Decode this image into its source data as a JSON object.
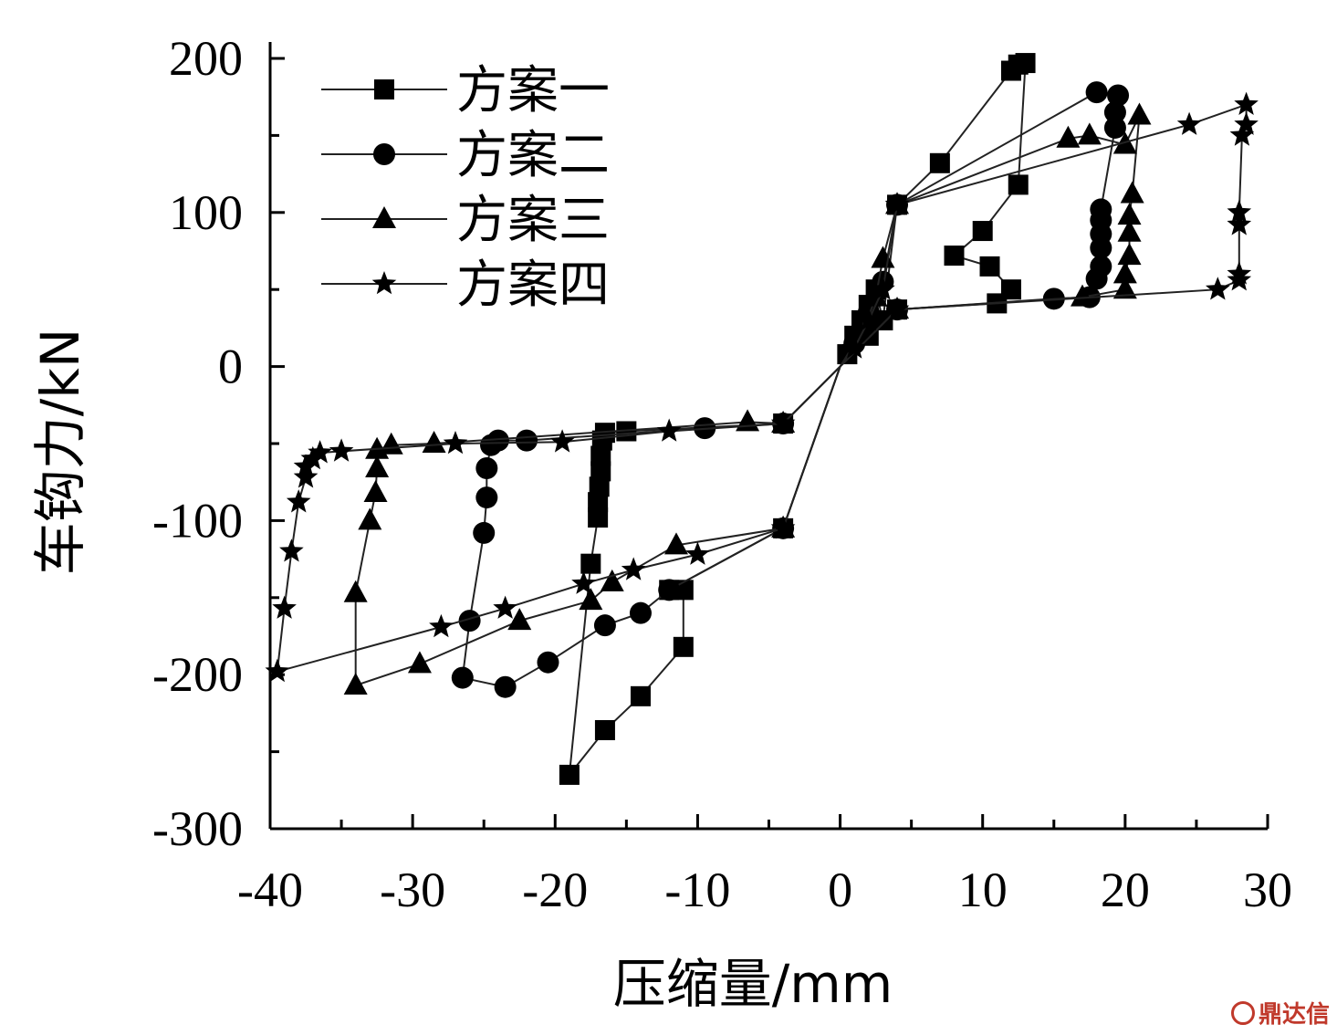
{
  "chart_data": {
    "type": "line",
    "xlabel": "压缩量/mm",
    "ylabel": "车钩力/kN",
    "xlim": [
      -40,
      30
    ],
    "ylim": [
      -300,
      200
    ],
    "xticks": [
      -40,
      -30,
      -20,
      -10,
      0,
      10,
      20,
      30
    ],
    "yticks": [
      -300,
      -200,
      -100,
      0,
      100,
      200
    ],
    "xtick_labels": [
      "-40",
      "-30",
      "-20",
      "-10",
      "0",
      "10",
      "20",
      "30"
    ],
    "ytick_labels": [
      "-300",
      "-200",
      "-100",
      "0",
      "100",
      "200"
    ],
    "legend_position": "top-left",
    "grid": false,
    "series": [
      {
        "name": "方案一",
        "marker": "square",
        "points": [
          [
            0,
            0
          ],
          [
            0.5,
            8
          ],
          [
            1,
            20
          ],
          [
            1.5,
            30
          ],
          [
            2,
            40
          ],
          [
            2.5,
            50
          ],
          [
            3,
            30
          ],
          [
            4,
            105
          ],
          [
            7,
            132
          ],
          [
            12,
            192
          ],
          [
            12.5,
            196
          ],
          [
            13,
            197
          ],
          [
            12.5,
            118
          ],
          [
            10,
            88
          ],
          [
            8,
            72
          ],
          [
            10.5,
            65
          ],
          [
            12,
            50
          ],
          [
            11,
            41
          ],
          [
            4,
            37
          ],
          [
            2,
            20
          ],
          [
            0,
            0
          ],
          [
            -4,
            -37
          ],
          [
            -15,
            -42
          ],
          [
            -16.5,
            -43
          ],
          [
            -16.7,
            -48
          ],
          [
            -16.8,
            -58
          ],
          [
            -16.8,
            -68
          ],
          [
            -16.9,
            -78
          ],
          [
            -17,
            -88
          ],
          [
            -17,
            -98
          ],
          [
            -17.5,
            -128
          ],
          [
            -19,
            -265
          ],
          [
            -16.5,
            -236
          ],
          [
            -14,
            -214
          ],
          [
            -11,
            -182
          ],
          [
            -11,
            -145
          ],
          [
            -12,
            -145
          ],
          [
            -4,
            -105
          ],
          [
            0,
            0
          ]
        ]
      },
      {
        "name": "方案二",
        "marker": "circle",
        "points": [
          [
            0,
            0
          ],
          [
            1,
            15
          ],
          [
            2,
            35
          ],
          [
            3,
            55
          ],
          [
            4,
            105
          ],
          [
            18,
            178
          ],
          [
            19.5,
            176
          ],
          [
            19.3,
            165
          ],
          [
            19.3,
            155
          ],
          [
            18.3,
            102
          ],
          [
            18.3,
            95
          ],
          [
            18.3,
            86
          ],
          [
            18.3,
            77
          ],
          [
            18.3,
            65
          ],
          [
            18,
            57
          ],
          [
            17.5,
            45
          ],
          [
            15,
            44
          ],
          [
            4,
            37
          ],
          [
            0,
            0
          ],
          [
            -4,
            -37
          ],
          [
            -9.5,
            -40
          ],
          [
            -22,
            -48
          ],
          [
            -24,
            -48
          ],
          [
            -24.5,
            -51
          ],
          [
            -24.8,
            -66
          ],
          [
            -24.8,
            -85
          ],
          [
            -25,
            -108
          ],
          [
            -26,
            -165
          ],
          [
            -26.5,
            -202
          ],
          [
            -23.5,
            -208
          ],
          [
            -20.5,
            -192
          ],
          [
            -16.5,
            -168
          ],
          [
            -14,
            -160
          ],
          [
            -12,
            -145
          ],
          [
            -4,
            -105
          ],
          [
            0,
            0
          ]
        ]
      },
      {
        "name": "方案三",
        "marker": "triangle",
        "points": [
          [
            0,
            0
          ],
          [
            1.5,
            20
          ],
          [
            2.5,
            45
          ],
          [
            3,
            70
          ],
          [
            4,
            105
          ],
          [
            16,
            148
          ],
          [
            17.5,
            150
          ],
          [
            20,
            144
          ],
          [
            21,
            163
          ],
          [
            20.5,
            112
          ],
          [
            20.3,
            98
          ],
          [
            20.3,
            87
          ],
          [
            20.3,
            72
          ],
          [
            20,
            60
          ],
          [
            20,
            50
          ],
          [
            17,
            45
          ],
          [
            4,
            37
          ],
          [
            0,
            0
          ],
          [
            -4,
            -37
          ],
          [
            -6.5,
            -36
          ],
          [
            -28.5,
            -50
          ],
          [
            -31.5,
            -51
          ],
          [
            -32.5,
            -54
          ],
          [
            -32.5,
            -66
          ],
          [
            -32.6,
            -82
          ],
          [
            -33,
            -100
          ],
          [
            -34,
            -147
          ],
          [
            -34,
            -207
          ],
          [
            -29.5,
            -193
          ],
          [
            -22.5,
            -165
          ],
          [
            -17.5,
            -152
          ],
          [
            -16,
            -140
          ],
          [
            -11.5,
            -116
          ],
          [
            -4,
            -105
          ],
          [
            0,
            0
          ]
        ]
      },
      {
        "name": "方案四",
        "marker": "star",
        "points": [
          [
            0,
            0
          ],
          [
            1,
            12
          ],
          [
            2,
            30
          ],
          [
            3,
            50
          ],
          [
            4,
            105
          ],
          [
            24.5,
            157
          ],
          [
            28.5,
            170
          ],
          [
            28.5,
            157
          ],
          [
            28.2,
            150
          ],
          [
            28,
            100
          ],
          [
            28,
            92
          ],
          [
            28,
            60
          ],
          [
            28,
            56
          ],
          [
            26.5,
            50
          ],
          [
            4,
            37
          ],
          [
            0,
            0
          ],
          [
            -4,
            -37
          ],
          [
            -12,
            -42
          ],
          [
            -19.5,
            -49
          ],
          [
            -27,
            -50
          ],
          [
            -35,
            -55
          ],
          [
            -36.5,
            -56
          ],
          [
            -37,
            -60
          ],
          [
            -37.5,
            -65
          ],
          [
            -37.5,
            -72
          ],
          [
            -38,
            -88
          ],
          [
            -38.5,
            -120
          ],
          [
            -39,
            -157
          ],
          [
            -39.5,
            -198
          ],
          [
            -28,
            -169
          ],
          [
            -23.5,
            -157
          ],
          [
            -18,
            -141
          ],
          [
            -14.5,
            -132
          ],
          [
            -10,
            -122
          ],
          [
            -4,
            -105
          ],
          [
            0,
            0
          ]
        ]
      }
    ]
  },
  "watermark": {
    "text": "鼎达信",
    "color": "#c0392b"
  }
}
